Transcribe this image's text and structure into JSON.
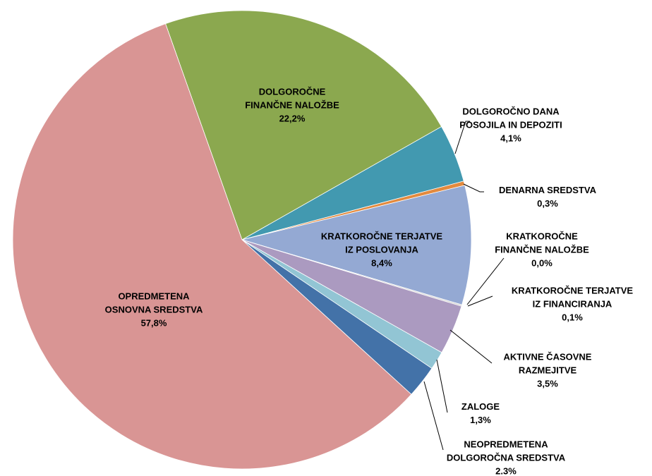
{
  "chart_data": {
    "type": "pie",
    "categories": [
      [
        "DOLGOROČNE",
        "FINANČNE NALOŽBE"
      ],
      [
        "DOLGOROČNO DANA",
        "POSOJILA IN DEPOZITI"
      ],
      [
        "DENARNA SREDSTVA"
      ],
      [
        "KRATKOROČNE TERJATVE",
        "IZ POSLOVANJA"
      ],
      [
        "KRATKOROČNE",
        "FINANČNE NALOŽBE"
      ],
      [
        "KRATKOROČNE TERJATVE",
        "IZ FINANCIRANJA"
      ],
      [
        "AKTIVNE ČASOVNE",
        "RAZMEJITVE"
      ],
      [
        "ZALOGE"
      ],
      [
        "NEOPREDMETENA",
        "DOLGOROČNA SREDSTVA"
      ],
      [
        "OPREDMETENA",
        "OSNOVNA SREDSTVA"
      ]
    ],
    "values": [
      22.2,
      4.1,
      0.3,
      8.4,
      0.0,
      0.1,
      3.5,
      1.3,
      2.3,
      57.8
    ],
    "value_labels": [
      "22,2%",
      "4,1%",
      "0,3%",
      "8,4%",
      "0,0%",
      "0,1%",
      "3,5%",
      "1,3%",
      "2.3%",
      "57,8%"
    ],
    "colors": [
      "#8ba84f",
      "#4299b0",
      "#e38a3e",
      "#94a9d3",
      "#c0504d",
      "#d0d0d0",
      "#ab9ac0",
      "#92c5d4",
      "#4372a8",
      "#d99594"
    ]
  }
}
